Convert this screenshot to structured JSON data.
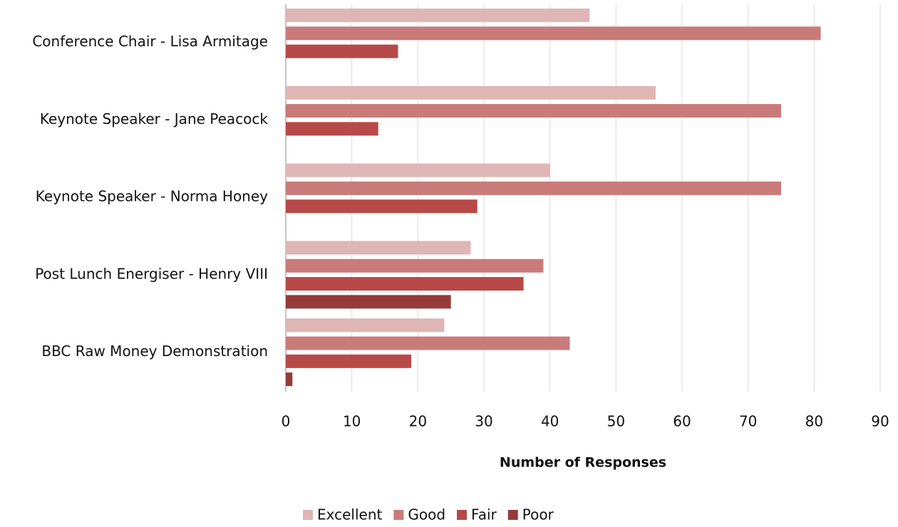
{
  "chart_data": {
    "type": "bar",
    "orientation": "horizontal",
    "categories": [
      "Conference Chair - Lisa Armitage",
      "Keynote Speaker - Jane Peacock",
      "Keynote Speaker - Norma Honey",
      "Post Lunch Energiser - Henry VIII",
      "BBC Raw Money Demonstration"
    ],
    "series": [
      {
        "name": "Excellent",
        "color": "#dfb6b5",
        "values": [
          46,
          56,
          40,
          28,
          24
        ]
      },
      {
        "name": "Good",
        "color": "#c97b7a",
        "values": [
          81,
          75,
          75,
          39,
          43
        ]
      },
      {
        "name": "Fair",
        "color": "#b74a48",
        "values": [
          17,
          14,
          29,
          36,
          19
        ]
      },
      {
        "name": "Poor",
        "color": "#963b3a",
        "values": [
          0,
          0,
          0,
          25,
          1
        ]
      }
    ],
    "x_label": "Number of Responses",
    "xlim": [
      0,
      90
    ],
    "xticks": [
      0,
      10,
      20,
      30,
      40,
      50,
      60,
      70,
      80,
      90
    ],
    "grid": true,
    "legend": "bottom"
  }
}
